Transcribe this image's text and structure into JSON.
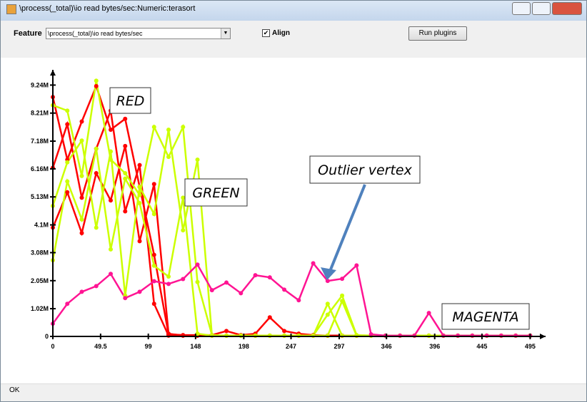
{
  "window": {
    "title": "\\process(_total)\\io read bytes/sec:Numeric:terasort",
    "feature_label": "Feature",
    "feature_value": "\\process(_total)\\io read bytes/sec",
    "align_label": "Align",
    "button": "Run plugins",
    "status": "OK"
  },
  "chart_data": {
    "type": "line",
    "annotations": [
      "RED",
      "GREEN",
      "Outlier vertex",
      "MAGENTA"
    ],
    "x": [
      0,
      15,
      30,
      45,
      60,
      75,
      90,
      105,
      120,
      135,
      150,
      165,
      180,
      195,
      210,
      225,
      240,
      255,
      270,
      285,
      300,
      315,
      330,
      345,
      360,
      375,
      390,
      405,
      420,
      435,
      450,
      465,
      480,
      495
    ],
    "xlim": [
      0,
      511
    ],
    "xticks": [
      0,
      49.5,
      99,
      148,
      198,
      247,
      297,
      346,
      396,
      445,
      495
    ],
    "ylim": [
      0,
      9800000
    ],
    "yticks": [
      0,
      {
        "value": 1020000,
        "label": "1.02M"
      },
      {
        "value": 2050000,
        "label": "2.05M"
      },
      {
        "value": 3080000,
        "label": "3.08M"
      },
      {
        "value": 4100000,
        "label": "4.1M"
      },
      {
        "value": 5130000,
        "label": "5.13M"
      },
      {
        "value": 6160000,
        "label": "6.16M"
      },
      {
        "value": 7180000,
        "label": "7.18M"
      },
      {
        "value": 8210000,
        "label": "8.21M"
      },
      {
        "value": 9240000,
        "label": "9.24M"
      }
    ],
    "series": [
      {
        "color": "#ff0000",
        "values": [
          8800000,
          6500000,
          7900000,
          9200000,
          7600000,
          8000000,
          5500000,
          3000000,
          80000,
          50000,
          50000,
          50000,
          200000,
          50000,
          100000,
          700000,
          200000,
          100000,
          50000,
          30000,
          30000,
          30000,
          30000,
          30000,
          30000,
          30000,
          30000,
          30000,
          30000,
          30000,
          30000,
          30000,
          30000,
          30000
        ]
      },
      {
        "color": "#ff0000",
        "values": [
          6200000,
          7800000,
          5100000,
          6900000,
          8300000,
          4600000,
          6300000,
          1200000,
          30000,
          30000,
          30000,
          30000,
          30000,
          30000,
          30000,
          30000,
          30000,
          30000,
          30000,
          30000,
          30000,
          30000,
          30000,
          30000,
          30000,
          30000,
          30000,
          30000,
          30000,
          30000,
          30000,
          30000,
          30000,
          30000
        ]
      },
      {
        "color": "#ff0000",
        "values": [
          4000000,
          5300000,
          3800000,
          6000000,
          5000000,
          7000000,
          3500000,
          5600000,
          100000,
          30000,
          30000,
          30000,
          30000,
          30000,
          30000,
          30000,
          30000,
          30000,
          30000,
          30000,
          30000,
          30000,
          30000,
          30000,
          30000,
          30000,
          30000,
          30000,
          30000,
          30000,
          30000,
          30000,
          30000,
          30000
        ]
      },
      {
        "color": "#ccff00",
        "values": [
          8500000,
          8300000,
          5900000,
          9400000,
          6500000,
          6000000,
          5200000,
          7700000,
          6600000,
          7700000,
          2000000,
          50000,
          30000,
          30000,
          30000,
          30000,
          30000,
          30000,
          30000,
          800000,
          1500000,
          50000,
          30000,
          30000,
          30000,
          30000,
          30000,
          30000,
          30000,
          30000,
          30000,
          30000,
          30000,
          30000
        ]
      },
      {
        "color": "#ccff00",
        "values": [
          4800000,
          6400000,
          7200000,
          4000000,
          6800000,
          1500000,
          5500000,
          4500000,
          7600000,
          3900000,
          6500000,
          30000,
          30000,
          30000,
          30000,
          30000,
          30000,
          30000,
          30000,
          30000,
          1300000,
          30000,
          30000,
          30000,
          30000,
          30000,
          30000,
          30000,
          30000,
          30000,
          30000,
          30000,
          30000,
          30000
        ]
      },
      {
        "color": "#ccff00",
        "values": [
          2800000,
          5700000,
          4300000,
          6900000,
          3200000,
          5800000,
          4900000,
          2600000,
          2200000,
          5100000,
          100000,
          30000,
          30000,
          30000,
          30000,
          30000,
          30000,
          30000,
          30000,
          1200000,
          30000,
          30000,
          30000,
          30000,
          30000,
          30000,
          30000,
          30000,
          30000,
          30000,
          30000,
          30000,
          30000,
          30000
        ]
      },
      {
        "color": "#ff1493",
        "values": [
          470000,
          1200000,
          1640000,
          1850000,
          2300000,
          1410000,
          1640000,
          2030000,
          1930000,
          2110000,
          2640000,
          1700000,
          1980000,
          1590000,
          2250000,
          2170000,
          1720000,
          1330000,
          2690000,
          2040000,
          2120000,
          2610000,
          80000,
          30000,
          30000,
          30000,
          860000,
          30000,
          30000,
          30000,
          30000,
          30000,
          30000,
          30000
        ]
      }
    ]
  }
}
